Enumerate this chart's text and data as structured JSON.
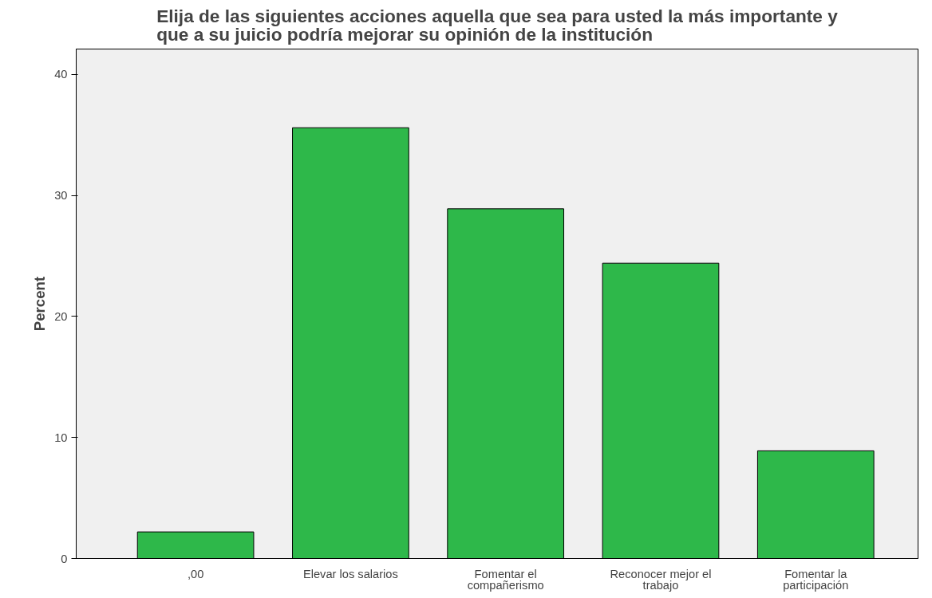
{
  "chart_data": {
    "type": "bar",
    "title": "Elija de las siguientes acciones aquella que sea para usted la más importante y\nque a su juicio podría mejorar su opinión de la institución",
    "ylabel": "Percent",
    "categories": [
      ",00",
      "Elevar los salarios",
      "Fomentar el\ncompañerismo",
      "Reconocer mejor el\ntrabajo",
      "Fomentar la\nparticipación"
    ],
    "values": [
      2.2,
      35.6,
      28.9,
      24.4,
      8.9
    ],
    "color": "#2eb84a",
    "ylim": [
      0,
      42.1
    ],
    "yticks": [
      0,
      10,
      20,
      30,
      40
    ],
    "grid": false
  }
}
